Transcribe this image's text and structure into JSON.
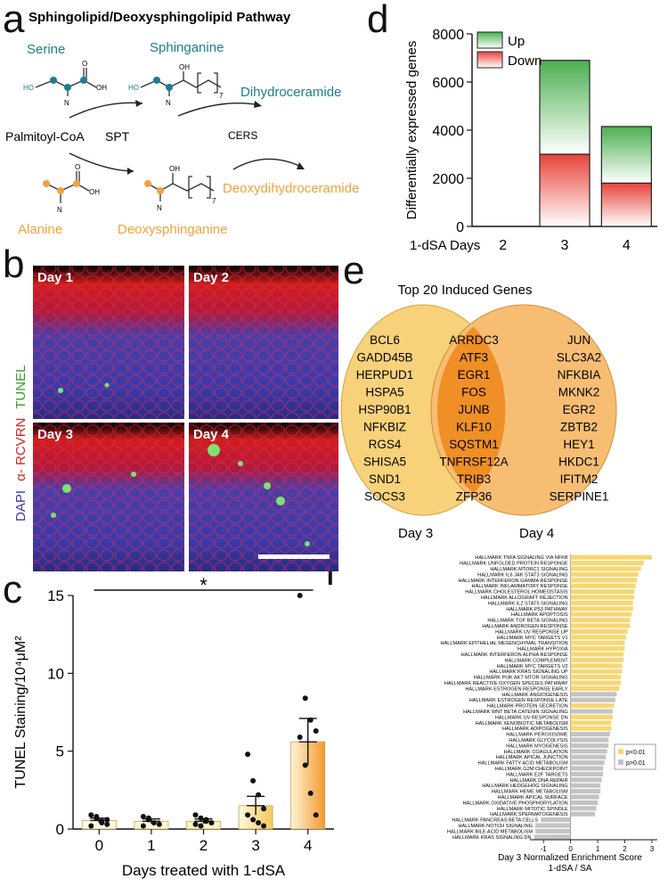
{
  "panel_labels": {
    "a": "a",
    "b": "b",
    "c": "c",
    "d": "d",
    "e": "e",
    "f": "f"
  },
  "colors": {
    "teal": "#1a7f8e",
    "orange": "#f2a23c",
    "up_green": "#4caf50",
    "down_red": "#e8423a",
    "yellow_bar": "#f7d774",
    "gray_bar": "#c3c3c3",
    "venn_left": "#f8d27a",
    "venn_right": "#f6b866",
    "venn_overlap": "#ef8f25",
    "cell_red": "#d8231f",
    "cell_blue": "#3a3aa0"
  },
  "pathway": {
    "title": "Sphingolipid/Deoxysphingolipid Pathway",
    "serine": "Serine",
    "sphinganine": "Sphinganine",
    "dihydroceramide": "Dihydroceramide",
    "palmitoyl": "Palmitoyl-CoA",
    "spt": "SPT",
    "cers": "CERS",
    "alanine": "Alanine",
    "deoxysphinganine": "Deoxysphinganine",
    "deoxydihydroceramide": "Deoxydihydroceramide",
    "ho": "HO",
    "oh": "OH",
    "o": "O",
    "n": "N",
    "seven": "7"
  },
  "micrographs": {
    "days": [
      "Day 1",
      "Day 2",
      "Day 3",
      "Day 4"
    ],
    "side_label": {
      "dapi": "DAPI",
      "rcvrn": "α- RCVRN",
      "tunel": "TUNEL"
    }
  },
  "chart_data": [
    {
      "id": "c",
      "type": "bar",
      "title": "",
      "categories": [
        "0",
        "1",
        "2",
        "3",
        "4"
      ],
      "values": [
        0.55,
        0.5,
        0.5,
        1.5,
        5.6
      ],
      "errors": [
        0.15,
        0.15,
        0.15,
        0.6,
        1.5
      ],
      "points": [
        [
          0.9,
          0.7,
          0.5,
          0.3,
          0.2,
          0.8,
          0.4,
          0.6
        ],
        [
          0.8,
          0.6,
          0.4,
          0.3,
          0.2,
          0.7
        ],
        [
          0.9,
          0.7,
          0.5,
          0.4,
          0.3,
          0.2,
          0.6
        ],
        [
          4.8,
          3.1,
          2.2,
          1.3,
          0.9,
          0.6,
          0.4,
          0.2
        ],
        [
          15,
          8.4,
          7.0,
          6.3,
          5.9,
          4.1,
          2.3,
          0.9
        ]
      ],
      "xlabel": "Days treated with 1-dSA",
      "ylabel": "TUNEL Staining/10⁴μM²",
      "ylim": [
        0,
        15
      ],
      "yticks": [
        0,
        5,
        10,
        15
      ],
      "significance": "*"
    },
    {
      "id": "d",
      "type": "bar",
      "stacked": true,
      "title": "",
      "categories": [
        "2",
        "3",
        "4"
      ],
      "xlabel_prefix": "1-dSA Days",
      "ylabel": "Differentially expressed genes",
      "ylim": [
        0,
        8000
      ],
      "yticks": [
        "0",
        "2000",
        "4000",
        "6000",
        "8000"
      ],
      "series": [
        {
          "name": "Down",
          "values": [
            0,
            3000,
            1800
          ]
        },
        {
          "name": "Up",
          "values": [
            0,
            3900,
            2350
          ]
        }
      ],
      "legend": [
        "Up",
        "Down"
      ]
    },
    {
      "id": "f",
      "type": "bar",
      "orientation": "horizontal",
      "xlabel": "Day 3 Normalized Enrichment Score",
      "xlabel2": "1-dSA / SA",
      "xlim": [
        -1.5,
        3.2
      ],
      "xticks": [
        "-1",
        "0",
        "1",
        "2",
        "3"
      ],
      "legend": [
        "p<0.01",
        "p>0.01"
      ],
      "labels": [
        "HALLMARK TNFA SIGNALING VIA NFKB",
        "HALLMARK UNFOLDED PROTEIN RESPONSE",
        "HALLMARK MTORC1 SIGNALING",
        "HALLMARK IL6 JAK STAT3 SIGNALING",
        "HALLMARK INTERFERON GAMMA RESPONSE",
        "HALLMARK INFLAMMATORY RESPONSE",
        "HALLMARK CHOLESTEROL HOMEOSTASIS",
        "HALLMARK ALLOGRAFT REJECTION",
        "HALLMARK IL2 STAT5 SIGNALING",
        "HALLMARK P53 PATHWAY",
        "HALLMARK APOPTOSIS",
        "HALLMARK TGF BETA SIGNALING",
        "HALLMARK ANDROGEN RESPONSE",
        "HALLMARK UV RESPONSE UP",
        "HALLMARK MYC TARGETS V1",
        "HALLMARK EPITHELIAL MESENCHYMAL TRANSITION",
        "HALLMARK HYPOXIA",
        "HALLMARK INTERFERON ALPHA RESPONSE",
        "HALLMARK COMPLEMENT",
        "HALLMARK MYC TARGETS V2",
        "HALLMARK KRAS SIGNALING UP",
        "HALLMARK PI3K AKT MTOR SIGNALING",
        "HALLMARK REACTIVE OXYGEN SPECIES PATHWAY",
        "HALLMARK ESTROGEN RESPONSE EARLY",
        "HALLMARK ANGIOGENESIS",
        "HALLMARK ESTROGEN RESPONSE LATE",
        "HALLMARK PROTEIN SECRETION",
        "HALLMARK WNT BETA CATENIN SIGNALING",
        "HALLMARK UV RESPONSE DN",
        "HALLMARK XENOBIOTIC METABOLISM",
        "HALLMARK ADIPOGENESIS",
        "HALLMARK PEROXISOME",
        "HALLMARK GLYCOLYSIS",
        "HALLMARK MYOGENESIS",
        "HALLMARK COAGULATION",
        "HALLMARK APICAL JUNCTION",
        "HALLMARK FATTY ACID METABOLISM",
        "HALLMARK G2M CHECKPOINT",
        "HALLMARK E2F TARGETS",
        "HALLMARK DNA REPAIR",
        "HALLMARK HEDGEHOG SIGNALING",
        "HALLMARK HEME METABOLISM",
        "HALLMARK APICAL SURFACE",
        "HALLMARK OXIDATIVE PHOSPHORYLATION",
        "HALLMARK MITOTIC SPINDLE",
        "HALLMARK SPERMATOGENESIS",
        "HALLMARK PANCREAS BETA CELLS",
        "HALLMARK NOTCH SIGNALING",
        "HALLMARK BILE ACID METABOLISM",
        "HALLMARK KRAS SIGNALING DN"
      ],
      "values": [
        3.0,
        2.7,
        2.6,
        2.5,
        2.45,
        2.4,
        2.35,
        2.35,
        2.3,
        2.3,
        2.25,
        2.2,
        2.2,
        2.1,
        2.05,
        2.0,
        2.0,
        1.95,
        1.95,
        1.9,
        1.9,
        1.85,
        1.85,
        1.8,
        1.7,
        1.65,
        1.6,
        1.55,
        1.55,
        1.5,
        1.5,
        1.45,
        1.4,
        1.4,
        1.35,
        1.3,
        1.25,
        1.2,
        1.2,
        1.15,
        1.1,
        1.1,
        1.05,
        1.0,
        0.95,
        0.9,
        -1.1,
        -1.3,
        -1.3,
        -1.35
      ],
      "significant": [
        true,
        true,
        true,
        true,
        true,
        true,
        true,
        true,
        true,
        true,
        true,
        true,
        true,
        true,
        true,
        true,
        true,
        true,
        true,
        true,
        true,
        true,
        true,
        true,
        false,
        false,
        true,
        false,
        true,
        true,
        true,
        false,
        false,
        false,
        false,
        false,
        false,
        false,
        false,
        false,
        false,
        false,
        false,
        false,
        false,
        false,
        false,
        false,
        false,
        false
      ]
    }
  ],
  "venn": {
    "title": "Top 20 Induced Genes",
    "left_label": "Day 3",
    "right_label": "Day 4",
    "left_genes": [
      "BCL6",
      "GADD45B",
      "HERPUD1",
      "HSPA5",
      "HSP90B1",
      "NFKBIZ",
      "RGS4",
      "SHISA5",
      "SND1",
      "SOCS3"
    ],
    "shared_genes": [
      "ARRDC3",
      "ATF3",
      "EGR1",
      "FOS",
      "JUNB",
      "KLF10",
      "SQSTM1",
      "TNFRSF12A",
      "TRIB3",
      "ZFP36"
    ],
    "right_genes": [
      "JUN",
      "SLC3A2",
      "NFKBIA",
      "MKNK2",
      "EGR2",
      "ZBTB2",
      "HEY1",
      "HKDC1",
      "IFITM2",
      "SERPINE1"
    ]
  }
}
